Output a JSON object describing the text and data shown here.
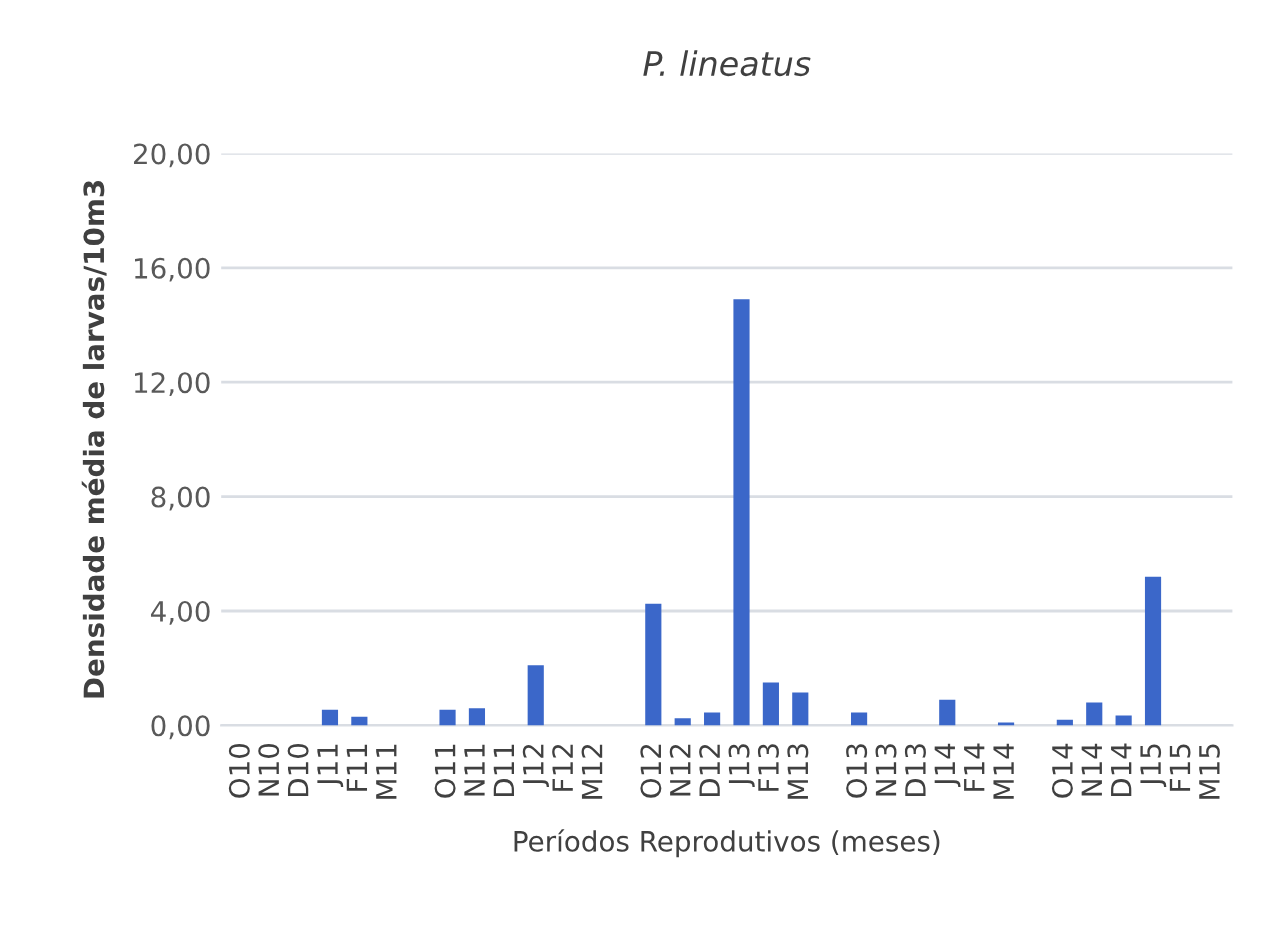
{
  "chart_data": {
    "type": "bar",
    "title": "P. lineatus",
    "xlabel": "Períodos Reprodutivos (meses)",
    "ylabel": "Densidade média de larvas/10m3",
    "categories": [
      "O10",
      "N10",
      "D10",
      "J11",
      "F11",
      "M11",
      null,
      "O11",
      "N11",
      "D11",
      "J12",
      "F12",
      "M12",
      null,
      "O12",
      "N12",
      "D12",
      "J13",
      "F13",
      "M13",
      null,
      "O13",
      "N13",
      "D13",
      "J14",
      "F14",
      "M14",
      null,
      "O14",
      "N14",
      "D14",
      "J15",
      "F15",
      "M15"
    ],
    "values": [
      0,
      0,
      0,
      0.55,
      0.3,
      0,
      null,
      0.55,
      0.6,
      0,
      2.1,
      0,
      0,
      null,
      4.25,
      0.25,
      0.45,
      14.9,
      1.5,
      1.15,
      null,
      0.45,
      0,
      0,
      0.9,
      0,
      0.1,
      null,
      0.2,
      0.8,
      0.35,
      5.2,
      0,
      0
    ],
    "color": "#3b67c9",
    "ylim": [
      0,
      20
    ],
    "yticks": [
      {
        "value": 0,
        "label": "0,00"
      },
      {
        "value": 4,
        "label": "4,00"
      },
      {
        "value": 8,
        "label": "8,00"
      },
      {
        "value": 12,
        "label": "12,00"
      },
      {
        "value": 16,
        "label": "16,00"
      },
      {
        "value": 20,
        "label": "20,00"
      }
    ],
    "grid": "y"
  }
}
